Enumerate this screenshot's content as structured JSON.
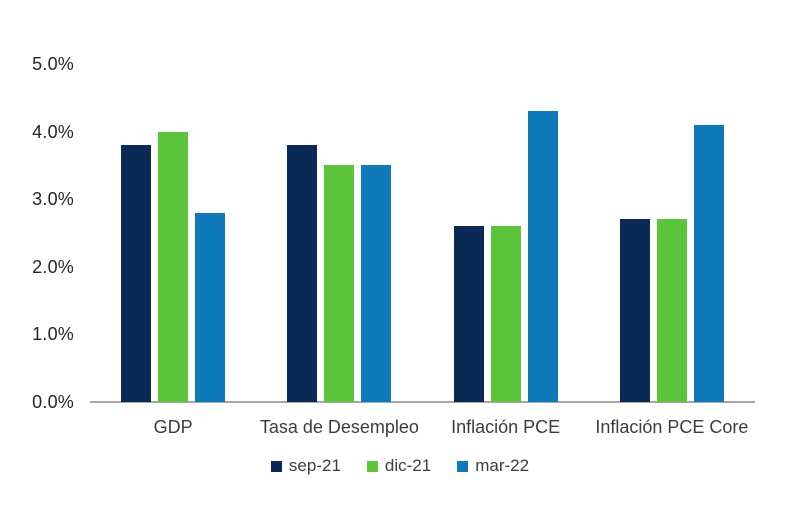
{
  "chart_data": {
    "type": "bar",
    "title": "",
    "categories": [
      "GDP",
      "Tasa de Desempleo",
      "Inflación PCE",
      "Inflación PCE Core"
    ],
    "series": [
      {
        "name": "sep-21",
        "color": "#0a2a55",
        "values": [
          3.8,
          3.8,
          2.6,
          2.7
        ]
      },
      {
        "name": "dic-21",
        "color": "#5cc43a",
        "values": [
          4.0,
          3.5,
          2.6,
          2.7
        ]
      },
      {
        "name": "mar-22",
        "color": "#0e79b8",
        "values": [
          2.8,
          3.5,
          4.3,
          4.1
        ]
      }
    ],
    "ylim": [
      0,
      5
    ],
    "yticks": [
      0,
      1,
      2,
      3,
      4,
      5
    ],
    "ytick_labels": [
      "0.0%",
      "1.0%",
      "2.0%",
      "3.0%",
      "4.0%",
      "5.0%"
    ],
    "grid": false,
    "legend_position": "bottom",
    "legend_labels": [
      "sep-21",
      "dic-21",
      "mar-22"
    ]
  },
  "colors": {
    "background": "#ffffff",
    "axis_line": "#a6a6a6",
    "tick_text": "#262626",
    "category_text": "#3d3d3d",
    "legend_text": "#3d3d3d"
  }
}
